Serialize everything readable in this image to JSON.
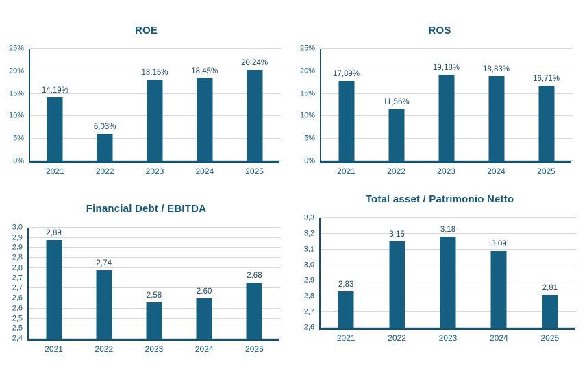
{
  "colors": {
    "bar": "#156082",
    "axis": "#14536f",
    "grid": "#d9d9d9",
    "title": "#12587c",
    "tick": "#156082",
    "data_label": "#1f4a60"
  },
  "chart_data": [
    {
      "type": "bar",
      "title": "ROE",
      "categories": [
        "2021",
        "2022",
        "2023",
        "2024",
        "2025"
      ],
      "values": [
        14.19,
        6.03,
        18.15,
        18.45,
        20.24
      ],
      "data_labels": [
        "14,19%",
        "6,03%",
        "18,15%",
        "18,45%",
        "20,24%"
      ],
      "ylim": [
        0,
        25
      ],
      "ytick_values": [
        0,
        5,
        10,
        15,
        20,
        25
      ],
      "ytick_labels": [
        "0%",
        "5%",
        "10%",
        "15%",
        "20%",
        "25%"
      ],
      "grid": true,
      "legend": "none",
      "bar_color": "#156082"
    },
    {
      "type": "bar",
      "title": "ROS",
      "categories": [
        "2021",
        "2022",
        "2023",
        "2024",
        "2025"
      ],
      "values": [
        17.89,
        11.56,
        19.18,
        18.83,
        16.71
      ],
      "data_labels": [
        "17,89%",
        "11,56%",
        "19,18%",
        "18,83%",
        "16,71%"
      ],
      "ylim": [
        0,
        25
      ],
      "ytick_values": [
        0,
        5,
        10,
        15,
        20,
        25
      ],
      "ytick_labels": [
        "0%",
        "5%",
        "10%",
        "15%",
        "20%",
        "25%"
      ],
      "grid": true,
      "legend": "none",
      "bar_color": "#156082"
    },
    {
      "type": "bar",
      "title": "Financial Debt / EBITDA",
      "categories": [
        "2021",
        "2022",
        "2023",
        "2024",
        "2025"
      ],
      "values": [
        2.89,
        2.74,
        2.58,
        2.6,
        2.68
      ],
      "data_labels": [
        "2,89",
        "2,74",
        "2,58",
        "2,60",
        "2,68"
      ],
      "ylim": [
        2.4,
        2.95
      ],
      "ytick_values": [
        2.4,
        2.45,
        2.5,
        2.55,
        2.6,
        2.65,
        2.7,
        2.75,
        2.8,
        2.85,
        2.9,
        2.95
      ],
      "ytick_labels": [
        "2,4",
        "2,5",
        "2,5",
        "2,6",
        "2,6",
        "2,7",
        "2,7",
        "2,8",
        "2,8",
        "2,9",
        "2,9",
        "3,0"
      ],
      "grid": true,
      "legend": "none",
      "bar_color": "#156082"
    },
    {
      "type": "bar",
      "title": "Total asset /  Patrimonio Netto",
      "categories": [
        "2021",
        "2022",
        "2023",
        "2024",
        "2025"
      ],
      "values": [
        2.83,
        3.15,
        3.18,
        3.09,
        2.81
      ],
      "data_labels": [
        "2,83",
        "3,15",
        "3,18",
        "3,09",
        "2,81"
      ],
      "ylim": [
        2.6,
        3.3
      ],
      "ytick_values": [
        2.6,
        2.7,
        2.8,
        2.9,
        3.0,
        3.1,
        3.2,
        3.3
      ],
      "ytick_labels": [
        "2,6",
        "2,7",
        "2,8",
        "2,9",
        "3,0",
        "3,1",
        "3,2",
        "3,3"
      ],
      "grid": true,
      "legend": "none",
      "bar_color": "#156082"
    }
  ]
}
